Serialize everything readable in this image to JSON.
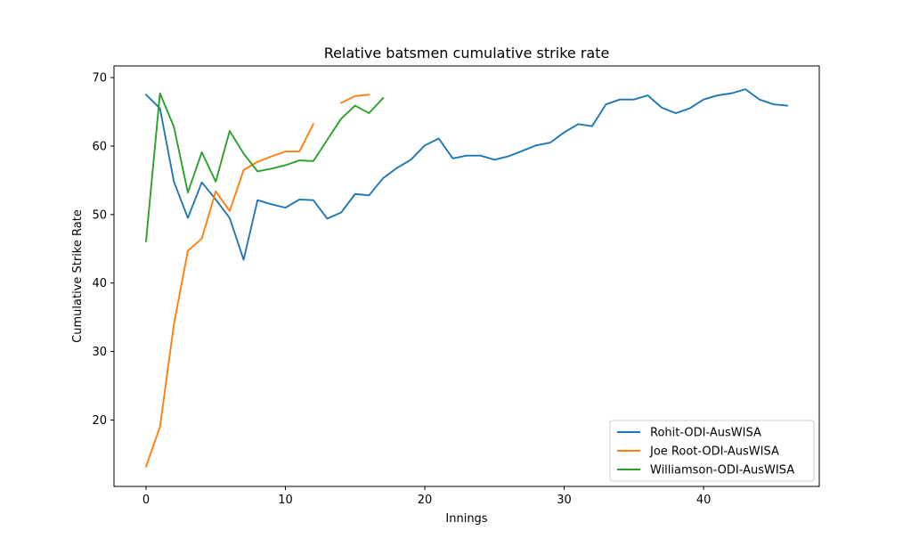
{
  "chart_data": {
    "type": "line",
    "title": "Relative batsmen cumulative strike rate",
    "xlabel": "Innings",
    "ylabel": "Cumulative Strike Rate",
    "xlim": [
      -2.3,
      48.3
    ],
    "ylim": [
      10.3,
      71.7
    ],
    "xticks": [
      0,
      10,
      20,
      30,
      40
    ],
    "yticks": [
      20,
      30,
      40,
      50,
      60,
      70
    ],
    "grid": false,
    "legend_position": "lower-right",
    "series": [
      {
        "name": "Rohit-ODI-AusWISA",
        "color": "#1f77b4",
        "points": [
          [
            0,
            67.5
          ],
          [
            1,
            65.5
          ],
          [
            2,
            54.8
          ],
          [
            3,
            49.5
          ],
          [
            4,
            54.7
          ],
          [
            5,
            52.2
          ],
          [
            6,
            49.5
          ],
          [
            7,
            43.4
          ],
          [
            8,
            52.1
          ],
          [
            9,
            51.5
          ],
          [
            10,
            51.0
          ],
          [
            11,
            52.2
          ],
          [
            12,
            52.1
          ],
          [
            13,
            49.4
          ],
          [
            14,
            50.3
          ],
          [
            15,
            53.0
          ],
          [
            16,
            52.8
          ],
          [
            17,
            55.3
          ],
          [
            18,
            56.8
          ],
          [
            19,
            58.0
          ],
          [
            20,
            60.1
          ],
          [
            21,
            61.1
          ],
          [
            22,
            58.2
          ],
          [
            23,
            58.6
          ],
          [
            24,
            58.6
          ],
          [
            25,
            58.0
          ],
          [
            26,
            58.5
          ],
          [
            27,
            59.3
          ],
          [
            28,
            60.1
          ],
          [
            29,
            60.5
          ],
          [
            30,
            62.0
          ],
          [
            31,
            63.2
          ],
          [
            32,
            62.9
          ],
          [
            33,
            66.1
          ],
          [
            34,
            66.8
          ],
          [
            35,
            66.8
          ],
          [
            36,
            67.4
          ],
          [
            37,
            65.6
          ],
          [
            38,
            64.8
          ],
          [
            39,
            65.5
          ],
          [
            40,
            66.8
          ],
          [
            41,
            67.4
          ],
          [
            42,
            67.7
          ],
          [
            43,
            68.3
          ],
          [
            44,
            66.8
          ],
          [
            45,
            66.1
          ],
          [
            46,
            65.9
          ]
        ]
      },
      {
        "name": "Joe Root-ODI-AusWISA",
        "color": "#ff7f0e",
        "points": [
          [
            0,
            13.2
          ],
          [
            1,
            19.0
          ],
          [
            2,
            34.0
          ],
          [
            3,
            44.7
          ],
          [
            4,
            46.5
          ],
          [
            5,
            53.4
          ],
          [
            6,
            50.5
          ],
          [
            7,
            56.5
          ],
          [
            8,
            57.7
          ],
          [
            9,
            58.5
          ],
          [
            10,
            59.2
          ],
          [
            11,
            59.2
          ],
          [
            12,
            63.2
          ],
          null,
          [
            14,
            66.3
          ],
          [
            15,
            67.3
          ],
          [
            16,
            67.5
          ]
        ]
      },
      {
        "name": "Williamson-ODI-AusWISA",
        "color": "#2ca02c",
        "points": [
          [
            0,
            46.1
          ],
          [
            1,
            67.7
          ],
          [
            2,
            62.8
          ],
          [
            3,
            53.2
          ],
          [
            4,
            59.1
          ],
          [
            5,
            54.8
          ],
          [
            6,
            62.2
          ],
          [
            7,
            58.9
          ],
          [
            8,
            56.3
          ],
          [
            9,
            56.7
          ],
          [
            10,
            57.2
          ],
          [
            11,
            57.9
          ],
          [
            12,
            57.8
          ],
          [
            13,
            60.9
          ],
          [
            14,
            64.0
          ],
          [
            15,
            65.9
          ],
          [
            16,
            64.8
          ],
          [
            17,
            67.0
          ]
        ]
      }
    ]
  }
}
